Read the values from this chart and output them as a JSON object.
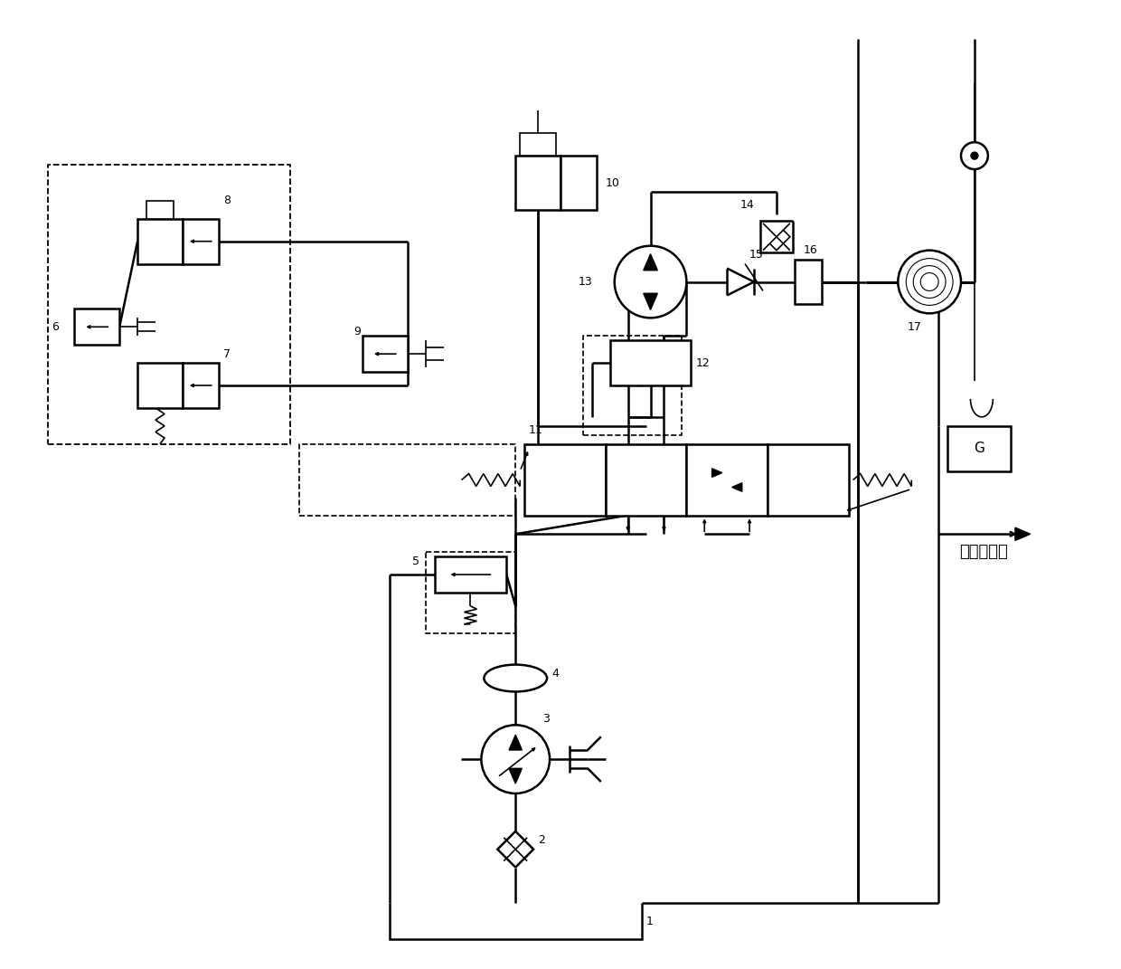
{
  "bg_color": "#ffffff",
  "line_color": "#000000",
  "figsize": [
    12.4,
    10.71
  ],
  "dpi": 100,
  "text_label": "去其他回路",
  "lw": 1.8,
  "lw_thin": 1.2,
  "lw_thick": 2.2
}
